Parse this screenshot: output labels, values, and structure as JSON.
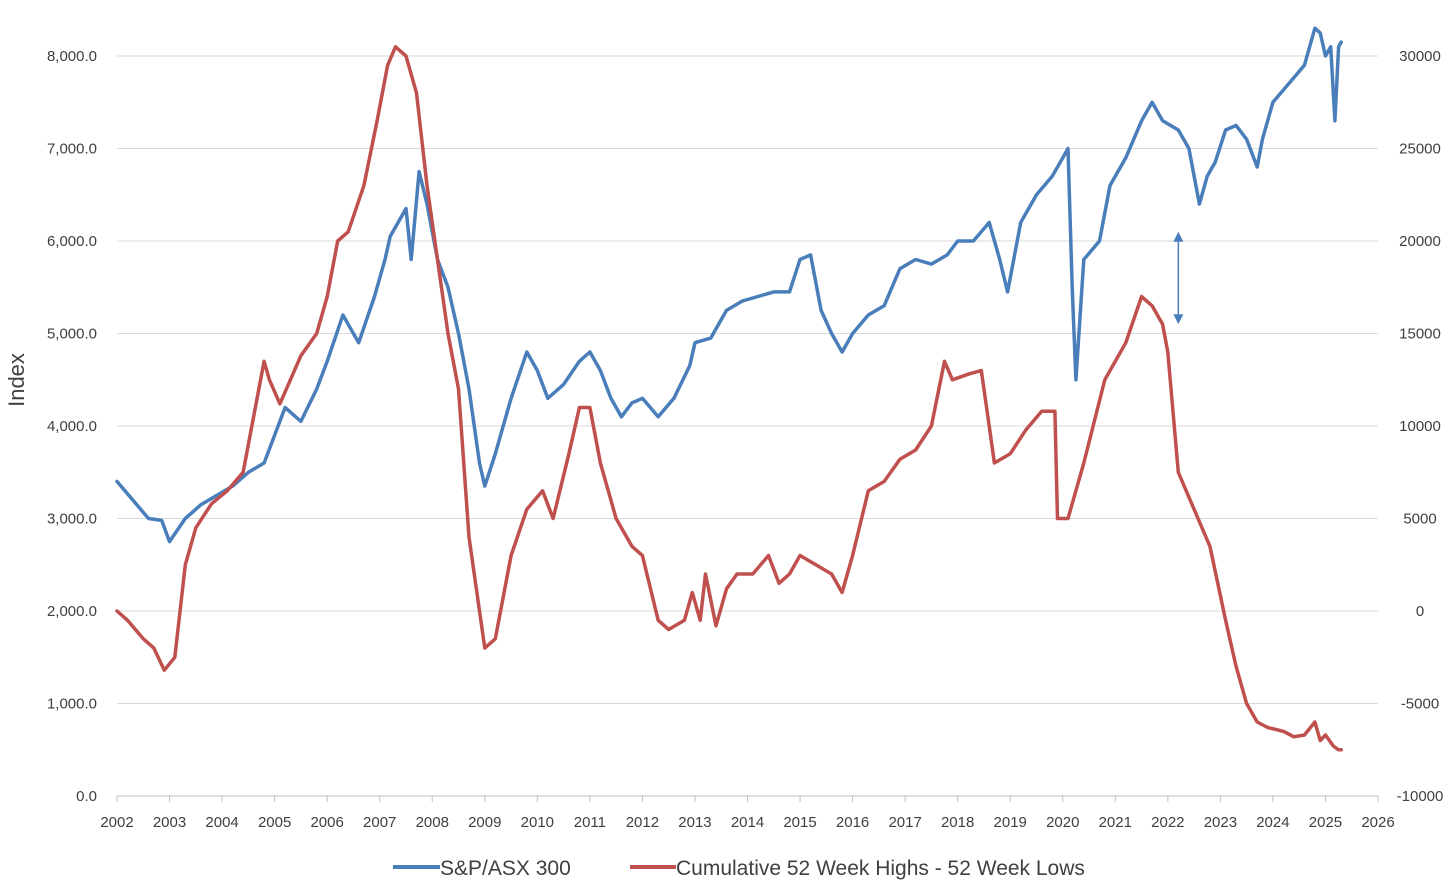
{
  "chart_data": {
    "type": "line",
    "title": "",
    "ylabel": "Index",
    "y2label": "",
    "xlabel": "",
    "xlim": [
      2002,
      2026
    ],
    "ylim": [
      0,
      8000
    ],
    "y2lim": [
      -10000,
      30000
    ],
    "grid": "horizontal",
    "legend_position": "bottom",
    "x_ticks": [
      "2002",
      "2003",
      "2004",
      "2005",
      "2006",
      "2007",
      "2008",
      "2009",
      "2010",
      "2011",
      "2012",
      "2013",
      "2014",
      "2015",
      "2016",
      "2017",
      "2018",
      "2019",
      "2020",
      "2021",
      "2022",
      "2023",
      "2024",
      "2025",
      "2026"
    ],
    "y_ticks": [
      "0.0",
      "1,000.0",
      "2,000.0",
      "3,000.0",
      "4,000.0",
      "5,000.0",
      "6,000.0",
      "7,000.0",
      "8,000.0"
    ],
    "y2_ticks": [
      "-10000",
      "-5000",
      "0",
      "5000",
      "10000",
      "15000",
      "20000",
      "25000",
      "30000"
    ],
    "series": [
      {
        "name": "S&P/ASX 300",
        "axis": "left",
        "color": "#4a7ebb",
        "x": [
          2002.0,
          2002.3,
          2002.6,
          2002.85,
          2003.0,
          2003.3,
          2003.6,
          2003.9,
          2004.2,
          2004.5,
          2004.8,
          2005.0,
          2005.2,
          2005.5,
          2005.8,
          2006.0,
          2006.3,
          2006.6,
          2006.9,
          2007.1,
          2007.2,
          2007.35,
          2007.5,
          2007.6,
          2007.75,
          2007.9,
          2008.1,
          2008.3,
          2008.5,
          2008.7,
          2008.9,
          2009.0,
          2009.2,
          2009.5,
          2009.8,
          2010.0,
          2010.2,
          2010.5,
          2010.8,
          2011.0,
          2011.2,
          2011.4,
          2011.6,
          2011.8,
          2012.0,
          2012.3,
          2012.6,
          2012.9,
          2013.0,
          2013.3,
          2013.6,
          2013.9,
          2014.2,
          2014.5,
          2014.8,
          2015.0,
          2015.2,
          2015.4,
          2015.6,
          2015.8,
          2016.0,
          2016.3,
          2016.6,
          2016.9,
          2017.2,
          2017.5,
          2017.8,
          2018.0,
          2018.3,
          2018.6,
          2018.8,
          2018.95,
          2019.2,
          2019.5,
          2019.8,
          2020.0,
          2020.1,
          2020.18,
          2020.25,
          2020.4,
          2020.7,
          2020.9,
          2021.2,
          2021.5,
          2021.7,
          2021.9,
          2022.2,
          2022.4,
          2022.6,
          2022.75,
          2022.9,
          2023.1,
          2023.3,
          2023.5,
          2023.7,
          2023.8,
          2024.0,
          2024.3,
          2024.6,
          2024.8,
          2024.9,
          2025.0,
          2025.1,
          2025.18,
          2025.25,
          2025.3
        ],
        "values": [
          3400,
          3200,
          3000,
          2980,
          2750,
          3000,
          3150,
          3250,
          3350,
          3500,
          3600,
          3900,
          4200,
          4050,
          4400,
          4700,
          5200,
          4900,
          5400,
          5800,
          6050,
          6200,
          6350,
          5800,
          6750,
          6400,
          5800,
          5500,
          5000,
          4400,
          3600,
          3350,
          3700,
          4300,
          4800,
          4600,
          4300,
          4450,
          4700,
          4800,
          4600,
          4300,
          4100,
          4250,
          4300,
          4100,
          4300,
          4650,
          4900,
          4950,
          5250,
          5350,
          5400,
          5450,
          5450,
          5800,
          5850,
          5250,
          5000,
          4800,
          5000,
          5200,
          5300,
          5700,
          5800,
          5750,
          5850,
          6000,
          6000,
          6200,
          5800,
          5450,
          6200,
          6500,
          6700,
          6900,
          7000,
          5500,
          4500,
          5800,
          6000,
          6600,
          6900,
          7300,
          7500,
          7300,
          7200,
          7000,
          6400,
          6700,
          6850,
          7200,
          7250,
          7100,
          6800,
          7100,
          7500,
          7700,
          7900,
          8300,
          8250,
          8000,
          8100,
          7300,
          8100,
          8150
        ]
      },
      {
        "name": "Cumulative 52 Week Highs - 52 Week Lows",
        "axis": "right",
        "color": "#c0504d",
        "x": [
          2002.0,
          2002.2,
          2002.5,
          2002.7,
          2002.9,
          2003.1,
          2003.3,
          2003.5,
          2003.8,
          2004.1,
          2004.4,
          2004.6,
          2004.8,
          2004.9,
          2005.1,
          2005.3,
          2005.5,
          2005.8,
          2006.0,
          2006.2,
          2006.4,
          2006.7,
          2006.95,
          2007.15,
          2007.3,
          2007.5,
          2007.7,
          2007.9,
          2008.1,
          2008.3,
          2008.5,
          2008.7,
          2008.9,
          2009.0,
          2009.2,
          2009.5,
          2009.8,
          2010.1,
          2010.3,
          2010.6,
          2010.8,
          2011.0,
          2011.2,
          2011.5,
          2011.8,
          2012.0,
          2012.3,
          2012.5,
          2012.8,
          2012.95,
          2013.1,
          2013.2,
          2013.4,
          2013.6,
          2013.8,
          2014.1,
          2014.4,
          2014.6,
          2014.8,
          2015.0,
          2015.3,
          2015.6,
          2015.8,
          2016.0,
          2016.3,
          2016.6,
          2016.9,
          2017.2,
          2017.5,
          2017.75,
          2017.9,
          2018.2,
          2018.45,
          2018.6,
          2018.7,
          2019.0,
          2019.3,
          2019.6,
          2019.85,
          2019.9,
          2020.1,
          2020.4,
          2020.8,
          2021.2,
          2021.5,
          2021.7,
          2021.9,
          2022.0,
          2022.2,
          2022.5,
          2022.8,
          2023.1,
          2023.3,
          2023.5,
          2023.7,
          2023.9,
          2024.2,
          2024.4,
          2024.6,
          2024.8,
          2024.9,
          2025.0,
          2025.15,
          2025.25,
          2025.3
        ],
        "values": [
          0,
          -500,
          -1500,
          -2000,
          -3200,
          -2500,
          2500,
          4500,
          5800,
          6500,
          7500,
          10500,
          13500,
          12500,
          11200,
          12500,
          13800,
          15000,
          17000,
          20000,
          20500,
          23000,
          26500,
          29500,
          30500,
          30000,
          28000,
          23000,
          19000,
          15000,
          12000,
          4000,
          0,
          -2000,
          -1500,
          3000,
          5500,
          6500,
          5000,
          8500,
          11000,
          11000,
          8000,
          5000,
          3500,
          3000,
          -500,
          -1000,
          -500,
          1000,
          -500,
          2000,
          -800,
          1200,
          2000,
          2000,
          3000,
          1500,
          2000,
          3000,
          2500,
          2000,
          1000,
          3000,
          6500,
          7000,
          8200,
          8700,
          10000,
          13500,
          12500,
          12800,
          13000,
          10000,
          8000,
          8500,
          9800,
          10800,
          10800,
          5000,
          5000,
          8000,
          12500,
          14500,
          17000,
          16500,
          15500,
          14000,
          7500,
          5500,
          3500,
          -500,
          -3000,
          -5000,
          -6000,
          -6300,
          -6500,
          -6800,
          -6700,
          -6000,
          -7000,
          -6700,
          -7300,
          -7500,
          -7500
        ]
      }
    ],
    "annotations": [
      {
        "type": "double-arrow",
        "x": 2022.2,
        "y_from": 6100,
        "y_to": 5100,
        "axis": "left"
      }
    ]
  }
}
